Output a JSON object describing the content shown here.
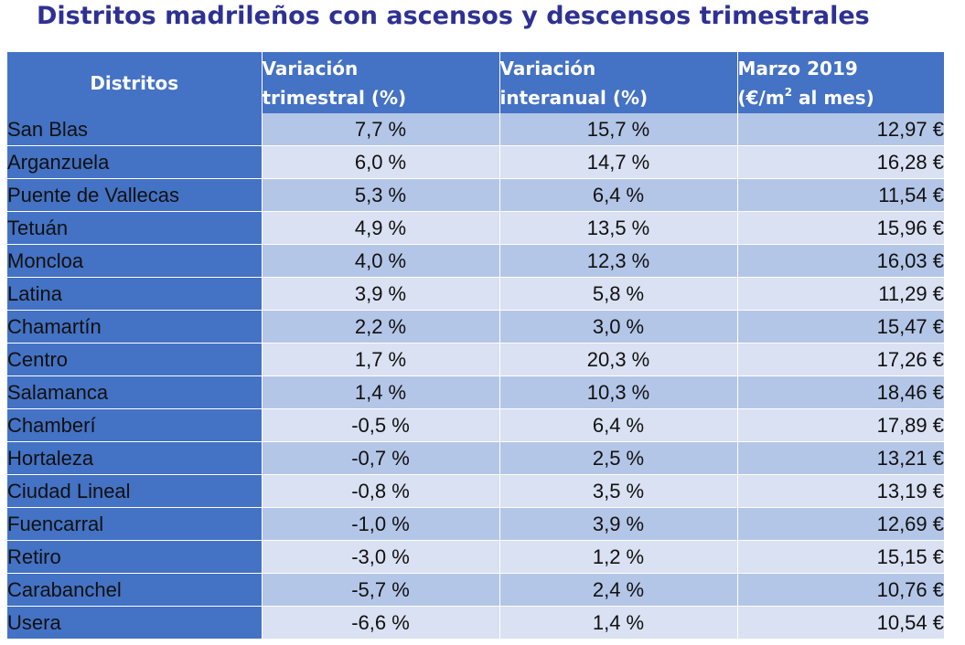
{
  "title": "Distritos madrileños con ascensos y descensos trimestrales",
  "colors": {
    "title": "#2E3192",
    "header_bg": "#4472C4",
    "row_odd": "#B4C6E7",
    "row_even": "#D9E1F2",
    "negative": "#FF0000"
  },
  "headers": {
    "district": "Distritos",
    "trim_line1": "Variación",
    "trim_line2": "trimestral (%)",
    "inter_line1": "Variación",
    "inter_line2": "interanual (%)",
    "price_line1": "Marzo 2019",
    "price_line2_pre": "(€/m",
    "price_line2_sup": "2",
    "price_line2_post": " al mes)"
  },
  "rows": [
    {
      "district": "San Blas",
      "trim": "7,7 %",
      "inter": "15,7 %",
      "price": "12,97 €"
    },
    {
      "district": "Arganzuela",
      "trim": "6,0 %",
      "inter": "14,7 %",
      "price": "16,28 €"
    },
    {
      "district": "Puente de Vallecas",
      "trim": "5,3 %",
      "inter": "6,4 %",
      "price": "11,54 €"
    },
    {
      "district": "Tetuán",
      "trim": "4,9 %",
      "inter": "13,5 %",
      "price": "15,96 €"
    },
    {
      "district": "Moncloa",
      "trim": "4,0 %",
      "inter": "12,3 %",
      "price": "16,03 €"
    },
    {
      "district": "Latina",
      "trim": "3,9 %",
      "inter": "5,8 %",
      "price": "11,29 €"
    },
    {
      "district": "Chamartín",
      "trim": "2,2 %",
      "inter": "3,0 %",
      "price": "15,47 €"
    },
    {
      "district": "Centro",
      "trim": "1,7 %",
      "inter": "20,3 %",
      "price": "17,26 €"
    },
    {
      "district": "Salamanca",
      "trim": "1,4 %",
      "inter": "10,3 %",
      "price": "18,46 €"
    },
    {
      "district": "Chamberí",
      "trim": "-0,5 %",
      "inter": "6,4 %",
      "price": "17,89 €"
    },
    {
      "district": "Hortaleza",
      "trim": "-0,7 %",
      "inter": "2,5 %",
      "price": "13,21 €"
    },
    {
      "district": "Ciudad Lineal",
      "trim": "-0,8 %",
      "inter": "3,5 %",
      "price": "13,19 €"
    },
    {
      "district": "Fuencarral",
      "trim": "-1,0 %",
      "inter": "3,9 %",
      "price": "12,69 €"
    },
    {
      "district": "Retiro",
      "trim": "-3,0 %",
      "inter": "1,2 %",
      "price": "15,15 €"
    },
    {
      "district": "Carabanchel",
      "trim": "-5,7 %",
      "inter": "2,4 %",
      "price": "10,76 €"
    },
    {
      "district": "Usera",
      "trim": "-6,6 %",
      "inter": "1,4 %",
      "price": "10,54 €"
    }
  ]
}
